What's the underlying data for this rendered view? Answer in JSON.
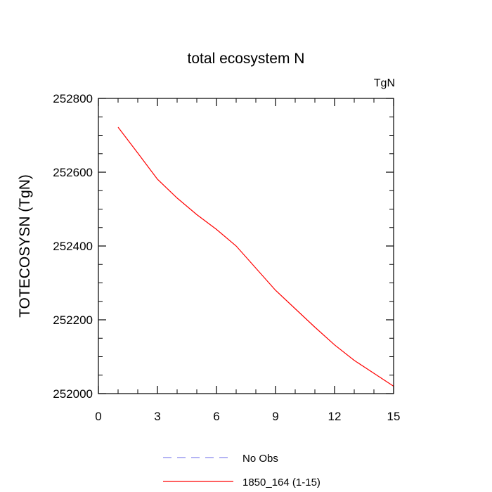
{
  "chart_data": {
    "type": "line",
    "title": "total ecosystem N",
    "units_label": "TgN",
    "ylabel": "TOTECOSYSN  (TgN)",
    "xlabel": "",
    "xlim": [
      0,
      15
    ],
    "ylim": [
      252000,
      252800
    ],
    "x_ticks": [
      0,
      3,
      6,
      9,
      12,
      15
    ],
    "y_ticks": [
      252000,
      252200,
      252400,
      252600,
      252800
    ],
    "grid": false,
    "legend_position": "bottom-center",
    "series": [
      {
        "name": "1850_164 (1-15)",
        "color": "#ff0000",
        "dash": "solid",
        "x": [
          1,
          2,
          3,
          4,
          5,
          6,
          7,
          8,
          9,
          10,
          11,
          12,
          13,
          14,
          15
        ],
        "y": [
          252722,
          252652,
          252581,
          252530,
          252485,
          252445,
          252400,
          252340,
          252280,
          252230,
          252180,
          252132,
          252090,
          252055,
          252020
        ]
      }
    ],
    "legend": [
      {
        "label": "No Obs",
        "color": "#8888ee",
        "dash": "dashed"
      },
      {
        "label": "1850_164 (1-15)",
        "color": "#ff0000",
        "dash": "solid"
      }
    ]
  }
}
